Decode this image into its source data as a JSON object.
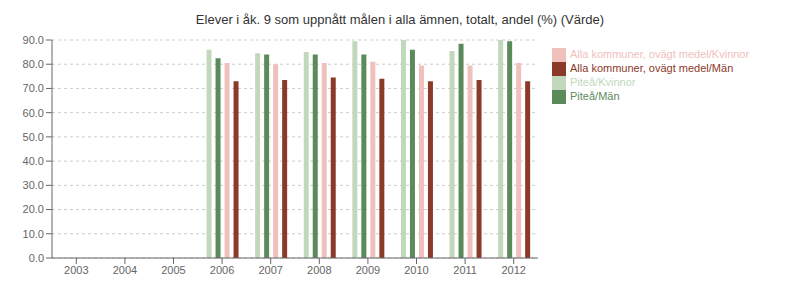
{
  "chart_data": {
    "type": "bar",
    "title": "Elever i åk. 9 som uppnått målen i alla ämnen, totalt, andel (%) (Värde)",
    "categories": [
      "2003",
      "2004",
      "2005",
      "2006",
      "2007",
      "2008",
      "2009",
      "2010",
      "2011",
      "2012"
    ],
    "series": [
      {
        "name": "Piteå/Kvinnor",
        "color": "#c2d8bc",
        "values": [
          null,
          null,
          null,
          86.0,
          84.5,
          85.0,
          89.5,
          90.0,
          85.5,
          90.0
        ]
      },
      {
        "name": "Piteå/Män",
        "color": "#5b8a5b",
        "values": [
          null,
          null,
          null,
          82.5,
          84.0,
          84.0,
          84.0,
          86.0,
          88.5,
          89.5
        ]
      },
      {
        "name": "Alla kommuner, ovägt medel/Kvinnor",
        "color": "#f0c0bc",
        "values": [
          null,
          null,
          null,
          80.5,
          80.0,
          80.5,
          81.0,
          79.5,
          79.5,
          80.5
        ]
      },
      {
        "name": "Alla kommuner, ovägt medel/Män",
        "color": "#8b3a2a",
        "values": [
          null,
          null,
          null,
          73.0,
          73.5,
          74.5,
          74.0,
          73.0,
          73.5,
          73.0
        ]
      }
    ],
    "ylim": [
      0,
      90
    ],
    "yticks": [
      {
        "value": 0,
        "label": "0.0"
      },
      {
        "value": 10,
        "label": "10.0"
      },
      {
        "value": 20,
        "label": "20.0"
      },
      {
        "value": 30,
        "label": "30.0"
      },
      {
        "value": 40,
        "label": "40.0"
      },
      {
        "value": 50,
        "label": "50.0"
      },
      {
        "value": 60,
        "label": "60.0"
      },
      {
        "value": 70,
        "label": "70.0"
      },
      {
        "value": 80,
        "label": "80.0"
      },
      {
        "value": 90,
        "label": "90.0"
      }
    ],
    "grid": true,
    "legend": "right"
  }
}
